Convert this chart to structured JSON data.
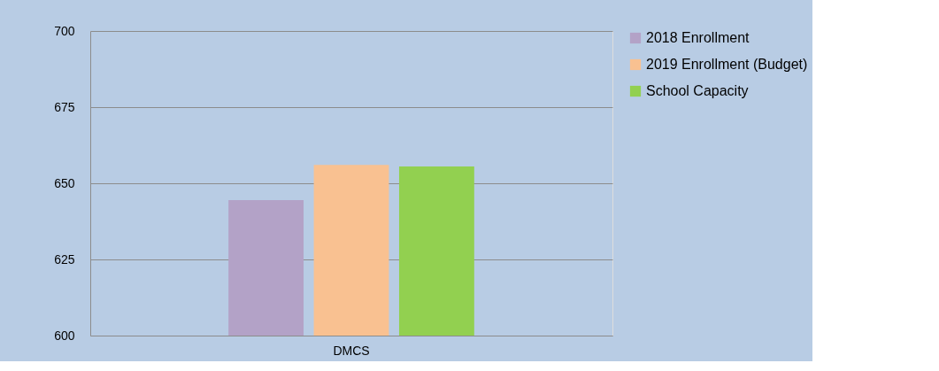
{
  "chart_data": {
    "type": "bar",
    "categories": [
      "DMCS"
    ],
    "series": [
      {
        "name": "2018 Enrollment",
        "color": "#b3a2c7",
        "values": [
          644.5
        ]
      },
      {
        "name": "2019 Enrollment (Budget)",
        "color": "#f9c191",
        "values": [
          656
        ]
      },
      {
        "name": "School Capacity",
        "color": "#92d050",
        "values": [
          655.5
        ]
      }
    ],
    "ylim": [
      600,
      700
    ],
    "yticks": [
      600,
      625,
      650,
      675,
      700
    ],
    "grid": "y",
    "legend": "right"
  }
}
